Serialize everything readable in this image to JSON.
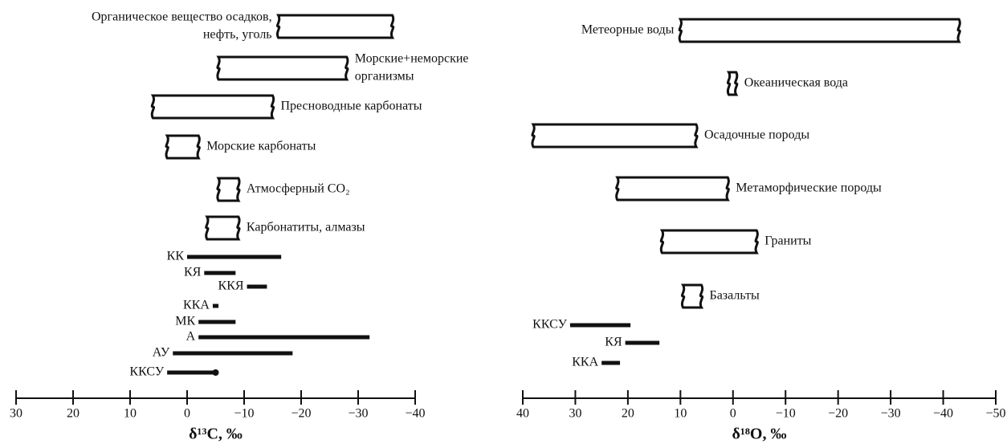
{
  "chart_data": [
    {
      "type": "range",
      "xlabel": "δ¹³C, ‰",
      "xlim": [
        30,
        -40
      ],
      "xticks": [
        30,
        20,
        10,
        0,
        {
          "value": -10,
          "label": "−10"
        },
        {
          "value": -20,
          "label": "−20"
        },
        {
          "value": -30,
          "label": "−30"
        },
        {
          "value": -40,
          "label": "−40"
        }
      ],
      "color": "#111111",
      "items": [
        {
          "label": [
            "Органическое вещество осадков,",
            "нефть, уголь"
          ],
          "style": "box",
          "values": [
            -16,
            -36
          ]
        },
        {
          "label": [
            "Морские+неморские",
            "организмы"
          ],
          "style": "box",
          "values": [
            -5.5,
            -28
          ]
        },
        {
          "label": "Пресноводные карбонаты",
          "style": "box",
          "values": [
            6,
            -15
          ]
        },
        {
          "label": "Морские карбонаты",
          "style": "box",
          "values": [
            3.5,
            -2
          ]
        },
        {
          "label": "Атмосферный CO₂",
          "style": "box",
          "values": [
            -5.5,
            -9
          ]
        },
        {
          "label": "Карбонатиты, алмазы",
          "style": "box",
          "values": [
            -3.5,
            -9
          ]
        },
        {
          "label": "КК",
          "style": "bar",
          "values": [
            0,
            -16.5
          ]
        },
        {
          "label": "КЯ",
          "style": "bar",
          "values": [
            -3,
            -8.5
          ]
        },
        {
          "label": "ККЯ",
          "style": "bar",
          "values": [
            -10.5,
            -14
          ]
        },
        {
          "label": "ККА",
          "style": "bar",
          "values": [
            -4.5,
            -5.5
          ]
        },
        {
          "label": "МК",
          "style": "bar",
          "values": [
            -2,
            -8.5
          ]
        },
        {
          "label": "А",
          "style": "bar",
          "values": [
            -2,
            -32
          ]
        },
        {
          "label": "АУ",
          "style": "bar",
          "values": [
            2.5,
            -18.5
          ]
        },
        {
          "label": "ККСУ",
          "style": "bar",
          "values": [
            3.5,
            -5
          ],
          "end_marker": true
        }
      ]
    },
    {
      "type": "range",
      "xlabel": "δ¹⁸O, ‰",
      "xlim": [
        40,
        -50
      ],
      "xticks": [
        40,
        30,
        20,
        10,
        0,
        {
          "value": -10,
          "label": "−10"
        },
        {
          "value": -20,
          "label": "−20"
        },
        {
          "value": -30,
          "label": "−30"
        },
        {
          "value": -40,
          "label": "−40"
        },
        {
          "value": -50,
          "label": "−50"
        }
      ],
      "color": "#111111",
      "items": [
        {
          "label": "Метеорные воды",
          "style": "box",
          "values": [
            10,
            -43
          ]
        },
        {
          "label": "Океаническая вода",
          "style": "box",
          "values": [
            0.8,
            -0.6
          ]
        },
        {
          "label": "Осадочные породы",
          "style": "box",
          "values": [
            38,
            7
          ]
        },
        {
          "label": "Метаморфические породы",
          "style": "box",
          "values": [
            22,
            1
          ]
        },
        {
          "label": "Граниты",
          "style": "box",
          "values": [
            13.5,
            -4.5
          ]
        },
        {
          "label": "Базальты",
          "style": "box",
          "values": [
            9.5,
            6
          ]
        },
        {
          "label": "ККСУ",
          "style": "bar",
          "values": [
            31,
            19.5
          ]
        },
        {
          "label": "КЯ",
          "style": "bar",
          "values": [
            20.5,
            14
          ]
        },
        {
          "label": "ККА",
          "style": "bar",
          "values": [
            25,
            21.5
          ]
        }
      ]
    }
  ]
}
